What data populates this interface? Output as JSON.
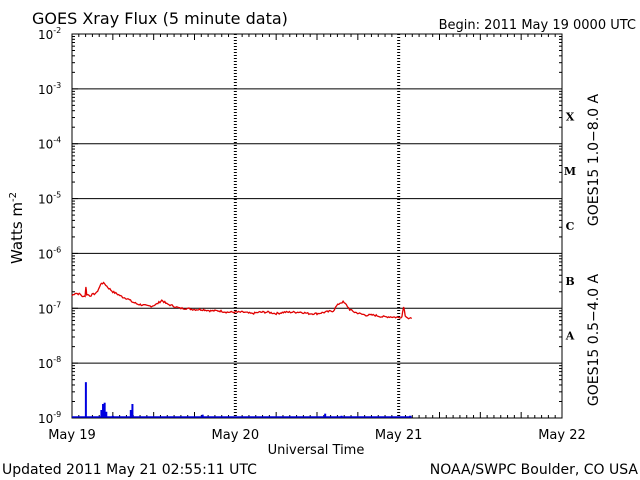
{
  "chart_data": {
    "type": "line",
    "title": "GOES Xray Flux (5 minute data)",
    "begin_label": "Begin:  2011 May 19 0000 UTC",
    "ylabel": "Watts m",
    "ylabel_sup": "-2",
    "xlabel": "Universal Time",
    "y_scale": "log",
    "ylim": [
      1e-09,
      0.01
    ],
    "xlim": [
      0,
      3
    ],
    "grid": true,
    "y_ticks": [
      {
        "exp": -2,
        "label": "10",
        "sup": "-2"
      },
      {
        "exp": -3,
        "label": "10",
        "sup": "-3"
      },
      {
        "exp": -4,
        "label": "10",
        "sup": "-4"
      },
      {
        "exp": -5,
        "label": "10",
        "sup": "-5"
      },
      {
        "exp": -6,
        "label": "10",
        "sup": "-6"
      },
      {
        "exp": -7,
        "label": "10",
        "sup": "-7"
      },
      {
        "exp": -8,
        "label": "10",
        "sup": "-8"
      },
      {
        "exp": -9,
        "label": "10",
        "sup": "-9"
      }
    ],
    "x_ticks": [
      {
        "value": 0,
        "label": "May 19"
      },
      {
        "value": 1,
        "label": "May 20"
      },
      {
        "value": 2,
        "label": "May 21"
      },
      {
        "value": 3,
        "label": "May 22"
      }
    ],
    "flare_classes": [
      {
        "label": "X",
        "exp": -3.5
      },
      {
        "label": "M",
        "exp": -4.5
      },
      {
        "label": "C",
        "exp": -5.5
      },
      {
        "label": "B",
        "exp": -6.5
      },
      {
        "label": "A",
        "exp": -7.5
      }
    ],
    "series": [
      {
        "name": "GOES15 1.0−8.0 A",
        "color": "#e00000",
        "x_unit": "days since 2011 May 19 0000 UTC",
        "points": [
          [
            0.0,
            1.7e-07
          ],
          [
            0.02,
            1.9e-07
          ],
          [
            0.05,
            1.8e-07
          ],
          [
            0.07,
            1.6e-07
          ],
          [
            0.08,
            1.7e-07
          ],
          [
            0.085,
            2.5e-07
          ],
          [
            0.09,
            1.8e-07
          ],
          [
            0.11,
            1.7e-07
          ],
          [
            0.13,
            1.8e-07
          ],
          [
            0.15,
            1.9e-07
          ],
          [
            0.17,
            2.5e-07
          ],
          [
            0.18,
            2.9e-07
          ],
          [
            0.2,
            2.8e-07
          ],
          [
            0.22,
            2.4e-07
          ],
          [
            0.25,
            2e-07
          ],
          [
            0.28,
            1.8e-07
          ],
          [
            0.31,
            1.6e-07
          ],
          [
            0.34,
            1.5e-07
          ],
          [
            0.37,
            1.3e-07
          ],
          [
            0.4,
            1.2e-07
          ],
          [
            0.43,
            1.15e-07
          ],
          [
            0.46,
            1.1e-07
          ],
          [
            0.49,
            1.1e-07
          ],
          [
            0.52,
            1.2e-07
          ],
          [
            0.55,
            1.4e-07
          ],
          [
            0.58,
            1.2e-07
          ],
          [
            0.62,
            1.1e-07
          ],
          [
            0.66,
            1e-07
          ],
          [
            0.7,
            1e-07
          ],
          [
            0.75,
            9.5e-08
          ],
          [
            0.8,
            9.5e-08
          ],
          [
            0.85,
            9e-08
          ],
          [
            0.9,
            9e-08
          ],
          [
            0.95,
            8.5e-08
          ],
          [
            1.0,
            8.5e-08
          ],
          [
            1.05,
            8.5e-08
          ],
          [
            1.1,
            8e-08
          ],
          [
            1.15,
            8.5e-08
          ],
          [
            1.2,
            8.5e-08
          ],
          [
            1.25,
            8e-08
          ],
          [
            1.3,
            8.5e-08
          ],
          [
            1.35,
            8.5e-08
          ],
          [
            1.4,
            8.5e-08
          ],
          [
            1.45,
            8e-08
          ],
          [
            1.5,
            8e-08
          ],
          [
            1.55,
            8.5e-08
          ],
          [
            1.6,
            9e-08
          ],
          [
            1.62,
            1.1e-07
          ],
          [
            1.64,
            1.25e-07
          ],
          [
            1.66,
            1.3e-07
          ],
          [
            1.68,
            1.15e-07
          ],
          [
            1.7,
            9.5e-08
          ],
          [
            1.73,
            8.5e-08
          ],
          [
            1.76,
            8e-08
          ],
          [
            1.8,
            7.5e-08
          ],
          [
            1.85,
            7.5e-08
          ],
          [
            1.9,
            7e-08
          ],
          [
            1.95,
            7e-08
          ],
          [
            2.0,
            6.8e-08
          ],
          [
            2.02,
            7e-08
          ],
          [
            2.03,
            1.1e-07
          ],
          [
            2.04,
            7.5e-08
          ],
          [
            2.06,
            6.5e-08
          ],
          [
            2.08,
            6.5e-08
          ]
        ]
      },
      {
        "name": "GOES15 0.5−4.0 A",
        "color": "#0000e0",
        "x_unit": "days since 2011 May 19 0000 UTC",
        "baseline": 1e-09,
        "spikes": [
          [
            0.085,
            4.5e-09
          ],
          [
            0.18,
            1.4e-09
          ],
          [
            0.19,
            1.8e-09
          ],
          [
            0.2,
            1.9e-09
          ],
          [
            0.21,
            1.3e-09
          ],
          [
            0.25,
            1.1e-09
          ],
          [
            0.36,
            1.4e-09
          ],
          [
            0.37,
            1.8e-09
          ],
          [
            0.8,
            1.15e-09
          ],
          [
            1.55,
            1.2e-09
          ],
          [
            1.65,
            1.1e-09
          ],
          [
            2.07,
            1.1e-09
          ]
        ]
      }
    ],
    "footer_left": "Updated 2011 May 21 02:55:11 UTC",
    "footer_right": "NOAA/SWPC Boulder, CO USA"
  }
}
